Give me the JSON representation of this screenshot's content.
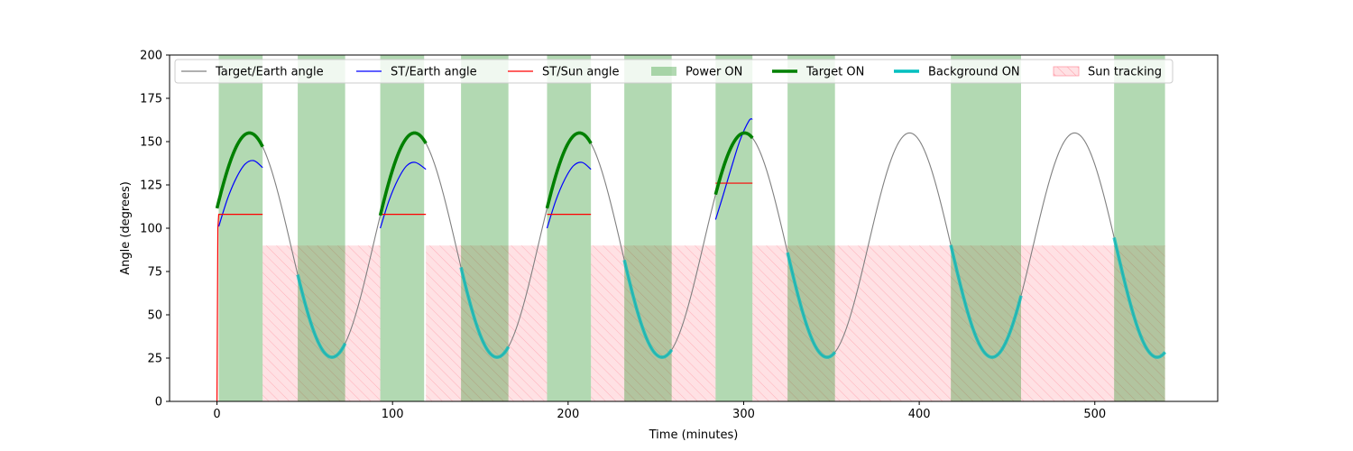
{
  "chart_data": {
    "type": "line",
    "title": "",
    "xlabel": "Time (minutes)",
    "ylabel": "Angle (degrees)",
    "xlim": [
      -27,
      570
    ],
    "ylim": [
      0,
      200
    ],
    "xticks": [
      0,
      100,
      200,
      300,
      400,
      500
    ],
    "yticks": [
      0,
      25,
      50,
      75,
      100,
      125,
      150,
      175,
      200
    ],
    "grid": false,
    "legend_position": "top, inside plot",
    "legend": [
      {
        "label": "Target/Earth angle",
        "kind": "line",
        "color": "#808080"
      },
      {
        "label": "ST/Earth angle",
        "kind": "line",
        "color": "#0000ff"
      },
      {
        "label": "ST/Sun angle",
        "kind": "line",
        "color": "#ff0000"
      },
      {
        "label": "Power ON",
        "kind": "patch",
        "color": "#008000"
      },
      {
        "label": "Target ON",
        "kind": "thickline",
        "color": "#008000"
      },
      {
        "label": "Background ON",
        "kind": "thickline",
        "color": "#00bfbf"
      },
      {
        "label": "Sun tracking",
        "kind": "hatch",
        "color": "#ff9aa6"
      }
    ],
    "target_earth_model": {
      "description": "periodic",
      "period_minutes": 94,
      "peak_time": 18.5,
      "max_deg": 155,
      "min_deg": 25.5,
      "t_start": 0,
      "t_end": 540
    },
    "power_on": [
      [
        1,
        26
      ],
      [
        46,
        73
      ],
      [
        93,
        118
      ],
      [
        139,
        166
      ],
      [
        188,
        213
      ],
      [
        232,
        259
      ],
      [
        284,
        305
      ],
      [
        325,
        352
      ],
      [
        418,
        458
      ],
      [
        511,
        540
      ]
    ],
    "sun_tracking": [
      [
        26,
        93
      ],
      [
        119,
        188
      ],
      [
        213,
        284
      ],
      [
        305,
        540
      ]
    ],
    "sun_tracking_angle": 90,
    "target_on": [
      [
        0,
        26
      ],
      [
        93,
        119
      ],
      [
        188,
        213
      ],
      [
        284,
        305
      ]
    ],
    "background_on": [
      [
        46,
        73
      ],
      [
        139,
        166
      ],
      [
        232,
        259
      ],
      [
        325,
        352
      ],
      [
        418,
        458
      ],
      [
        511,
        540
      ]
    ],
    "st_earth": [
      {
        "x": [
          1,
          6,
          11,
          16,
          21,
          26
        ],
        "y": [
          101,
          117,
          129,
          137,
          139,
          135
        ]
      },
      {
        "x": [
          93,
          98,
          103,
          108,
          113,
          119
        ],
        "y": [
          100,
          116,
          128,
          136,
          138,
          134
        ]
      },
      {
        "x": [
          188,
          193,
          198,
          203,
          208,
          213
        ],
        "y": [
          100,
          116,
          128,
          136,
          138,
          134
        ]
      },
      {
        "x": [
          284,
          288,
          293,
          298,
          303,
          305
        ],
        "y": [
          105,
          118,
          135,
          151,
          162,
          163
        ]
      }
    ],
    "st_sun": [
      {
        "x": [
          0,
          0.5,
          1,
          26
        ],
        "y": [
          0,
          100,
          108,
          108
        ]
      },
      {
        "x": [
          93,
          119
        ],
        "y": [
          108,
          108
        ]
      },
      {
        "x": [
          188,
          213
        ],
        "y": [
          108,
          108
        ]
      },
      {
        "x": [
          284,
          305
        ],
        "y": [
          126,
          126
        ]
      }
    ]
  }
}
